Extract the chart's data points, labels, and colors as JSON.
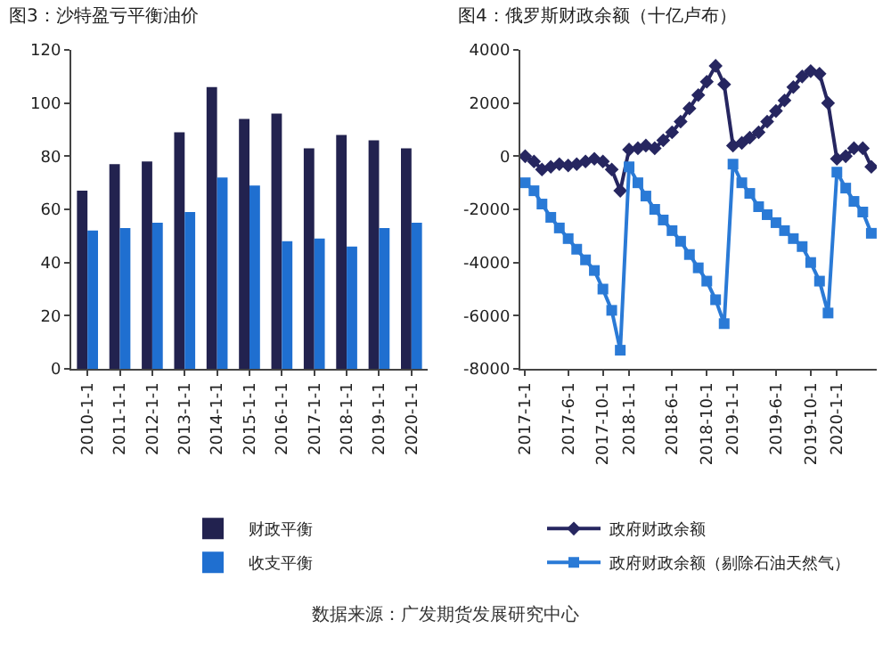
{
  "chart_data": [
    {
      "type": "bar",
      "title": "图3：沙特盈亏平衡油价",
      "categories": [
        "2010-1-1",
        "2011-1-1",
        "2012-1-1",
        "2013-1-1",
        "2014-1-1",
        "2015-1-1",
        "2016-1-1",
        "2017-1-1",
        "2018-1-1",
        "2019-1-1",
        "2020-1-1"
      ],
      "series": [
        {
          "name": "财政平衡",
          "color": "#22224f",
          "values": [
            67,
            77,
            78,
            89,
            106,
            94,
            96,
            83,
            88,
            86,
            83
          ]
        },
        {
          "name": "收支平衡",
          "color": "#1f6fd0",
          "values": [
            52,
            53,
            55,
            59,
            72,
            69,
            48,
            49,
            46,
            53,
            55
          ]
        }
      ],
      "ylim": [
        0,
        120
      ],
      "yticks": [
        0,
        20,
        40,
        60,
        80,
        100,
        120
      ],
      "grid": false,
      "legend": "bottom",
      "annotations": [
        "数据来源：广发期货发展研究中心"
      ]
    },
    {
      "type": "line",
      "title": "图4：俄罗斯财政余额（十亿卢布）",
      "x": [
        "2017-01",
        "2017-02",
        "2017-03",
        "2017-04",
        "2017-05",
        "2017-06",
        "2017-07",
        "2017-08",
        "2017-09",
        "2017-10",
        "2017-11",
        "2017-12",
        "2018-01",
        "2018-02",
        "2018-03",
        "2018-04",
        "2018-05",
        "2018-06",
        "2018-07",
        "2018-08",
        "2018-09",
        "2018-10",
        "2018-11",
        "2018-12",
        "2019-01",
        "2019-02",
        "2019-03",
        "2019-04",
        "2019-05",
        "2019-06",
        "2019-07",
        "2019-08",
        "2019-09",
        "2019-10",
        "2019-11",
        "2019-12",
        "2020-01",
        "2020-02",
        "2020-03",
        "2020-04",
        "2020-05"
      ],
      "series": [
        {
          "name": "政府财政余额",
          "color": "#262660",
          "marker": "diamond",
          "values": [
            0,
            -200,
            -500,
            -400,
            -300,
            -350,
            -300,
            -200,
            -100,
            -200,
            -500,
            -1300,
            250,
            300,
            400,
            300,
            600,
            900,
            1300,
            1800,
            2300,
            2800,
            3400,
            2700,
            400,
            500,
            700,
            900,
            1300,
            1700,
            2100,
            2600,
            3000,
            3200,
            3100,
            2000,
            -100,
            0,
            300,
            300,
            -400
          ]
        },
        {
          "name": "政府财政余额（剔除石油天然气）",
          "color": "#2a7ad6",
          "marker": "square",
          "values": [
            -1000,
            -1300,
            -1800,
            -2300,
            -2700,
            -3100,
            -3500,
            -3900,
            -4300,
            -5000,
            -5800,
            -7300,
            -400,
            -1000,
            -1500,
            -2000,
            -2400,
            -2800,
            -3200,
            -3700,
            -4200,
            -4700,
            -5400,
            -6300,
            -300,
            -1000,
            -1400,
            -1900,
            -2200,
            -2500,
            -2800,
            -3100,
            -3400,
            -4000,
            -4700,
            -5900,
            -600,
            -1200,
            -1700,
            -2100,
            -2900
          ]
        }
      ],
      "xlim": [
        "2016-12-15",
        "2020-05-20"
      ],
      "xticks": [
        {
          "value": "2017-01",
          "label": "2017-1-1"
        },
        {
          "value": "2017-06",
          "label": "2017-6-1"
        },
        {
          "value": "2017-10",
          "label": "2017-10-1"
        },
        {
          "value": "2018-01",
          "label": "2018-1-1"
        },
        {
          "value": "2018-06",
          "label": "2018-6-1"
        },
        {
          "value": "2018-10",
          "label": "2018-10-1"
        },
        {
          "value": "2019-01",
          "label": "2019-1-1"
        },
        {
          "value": "2019-06",
          "label": "2019-6-1"
        },
        {
          "value": "2019-10",
          "label": "2019-10-1"
        },
        {
          "value": "2020-01",
          "label": "2020-1-1"
        }
      ],
      "ylim": [
        -8000,
        4000
      ],
      "yticks": [
        -8000,
        -6000,
        -4000,
        -2000,
        0,
        2000,
        4000
      ],
      "grid": false,
      "legend": "bottom",
      "line_style": "solid"
    }
  ]
}
